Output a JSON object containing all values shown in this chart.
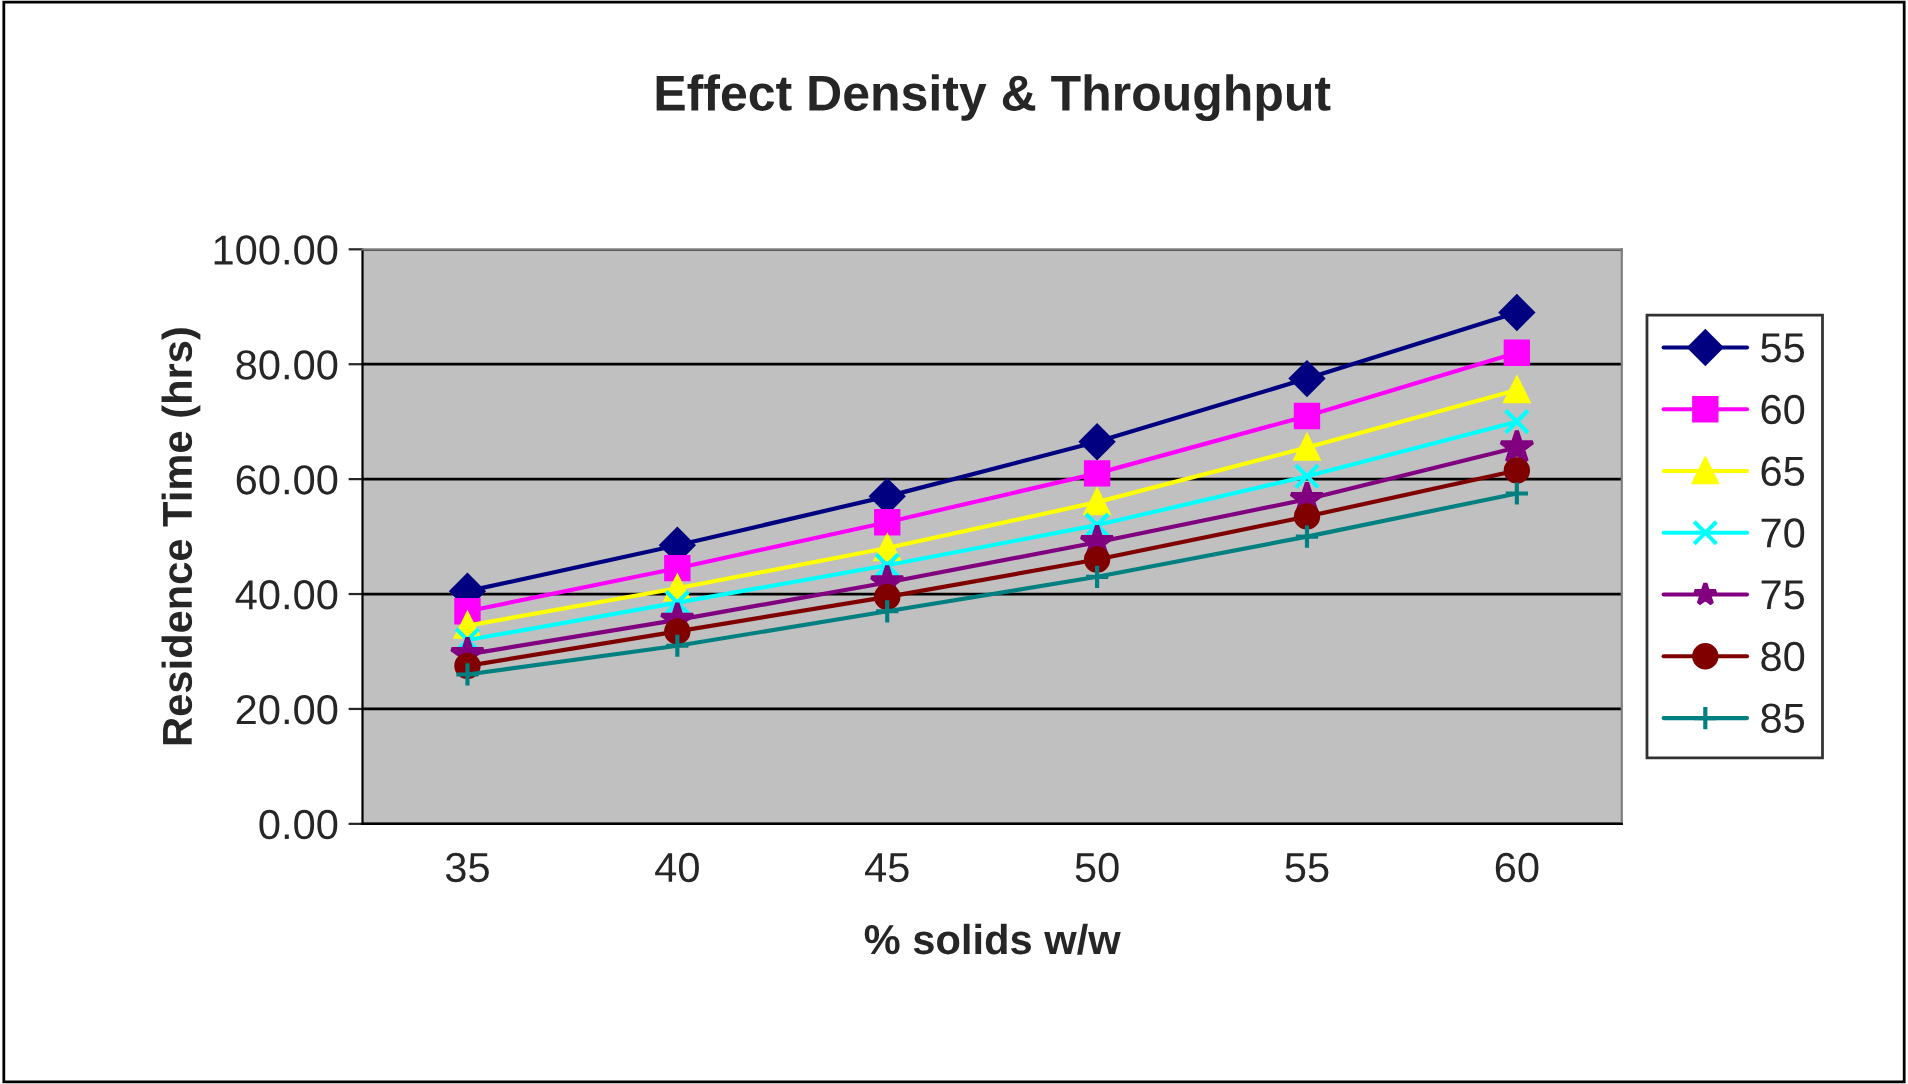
{
  "chart_data": {
    "type": "line",
    "title": "Effect Density & Throughput",
    "xlabel": "% solids w/w",
    "ylabel": "Residence Time (hrs)",
    "categories": [
      "35",
      "40",
      "45",
      "50",
      "55",
      "60"
    ],
    "ylim": [
      0,
      100
    ],
    "yticks": [
      {
        "value": 0,
        "label": "0.00"
      },
      {
        "value": 20,
        "label": "20.00"
      },
      {
        "value": 40,
        "label": "40.00"
      },
      {
        "value": 60,
        "label": "60.00"
      },
      {
        "value": 80,
        "label": "80.00"
      },
      {
        "value": 100,
        "label": "100.00"
      }
    ],
    "grid": "y",
    "legend": "right",
    "line_style": "solid",
    "series": [
      {
        "name": "55",
        "color": "#000080",
        "marker": "diamond",
        "values": [
          40.5,
          48.5,
          57,
          66.5,
          77.5,
          89
        ]
      },
      {
        "name": "60",
        "color": "#ff00ff",
        "marker": "square",
        "values": [
          37,
          44.5,
          52.5,
          61,
          71,
          82
        ]
      },
      {
        "name": "65",
        "color": "#ffff00",
        "marker": "triangle",
        "values": [
          34.5,
          41,
          48,
          56,
          65.5,
          75.5
        ]
      },
      {
        "name": "70",
        "color": "#00ffff",
        "marker": "cross",
        "values": [
          32,
          38.5,
          45,
          52,
          60.5,
          70
        ]
      },
      {
        "name": "75",
        "color": "#800080",
        "marker": "star",
        "values": [
          29.5,
          35.5,
          42,
          49,
          56.5,
          65.5
        ]
      },
      {
        "name": "80",
        "color": "#800000",
        "marker": "circle",
        "values": [
          27.5,
          33.5,
          39.5,
          46,
          53.5,
          61.5
        ]
      },
      {
        "name": "85",
        "color": "#008080",
        "marker": "plus",
        "values": [
          26,
          31,
          37,
          43,
          50,
          57.5
        ]
      }
    ]
  }
}
